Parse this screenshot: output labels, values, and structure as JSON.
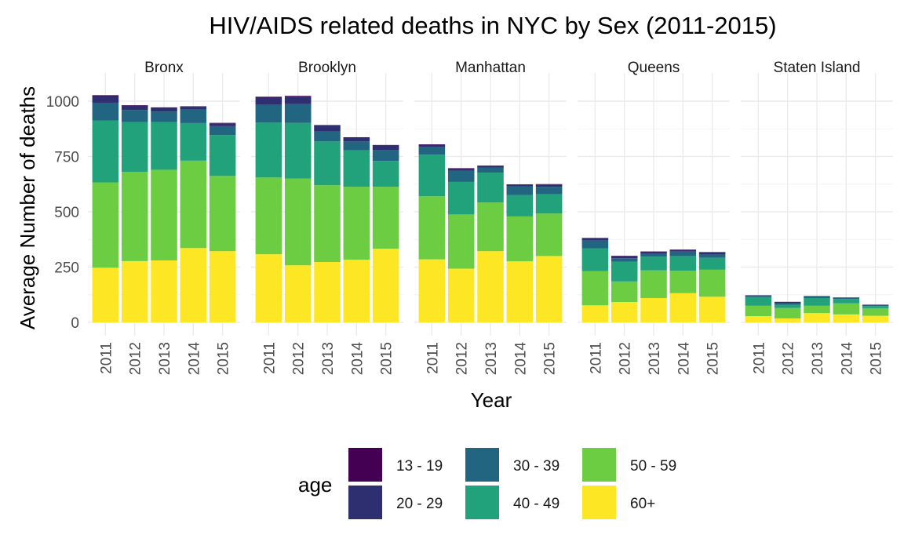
{
  "chart_data": {
    "type": "bar",
    "stacked": true,
    "title": "HIV/AIDS related deaths in NYC by Sex (2011-2015)",
    "xlabel": "Year",
    "ylabel": "Average Number of deaths",
    "ylim": [
      0,
      1080
    ],
    "yticks": [
      0,
      250,
      500,
      750,
      1000
    ],
    "categories": [
      "2011",
      "2012",
      "2013",
      "2014",
      "2015"
    ],
    "grid": true,
    "legend": {
      "title": "age",
      "placement": "bottom",
      "entries": [
        "13 - 19",
        "20 - 29",
        "30 - 39",
        "40 - 49",
        "50 - 59",
        "60+"
      ]
    },
    "colors": {
      "13 - 19": "#440154",
      "20 - 29": "#2e2f71",
      "30 - 39": "#226581",
      "40 - 49": "#22a27a",
      "50 - 59": "#6ccc42",
      "60+": "#fde725"
    },
    "stack_order": [
      "60+",
      "50 - 59",
      "40 - 49",
      "30 - 39",
      "20 - 29",
      "13 - 19"
    ],
    "panels": [
      {
        "name": "Bronx",
        "series": [
          {
            "name": "60+",
            "values": [
              247,
              277,
              280,
              336,
              322
            ]
          },
          {
            "name": "50 - 59",
            "values": [
              386,
              403,
              410,
              395,
              340
            ]
          },
          {
            "name": "40 - 49",
            "values": [
              280,
              225,
              215,
              170,
              185
            ]
          },
          {
            "name": "30 - 39",
            "values": [
              80,
              55,
              48,
              62,
              40
            ]
          },
          {
            "name": "20 - 29",
            "values": [
              30,
              20,
              17,
              12,
              13
            ]
          },
          {
            "name": "13 - 19",
            "values": [
              4,
              2,
              2,
              2,
              2
            ]
          }
        ]
      },
      {
        "name": "Brooklyn",
        "series": [
          {
            "name": "60+",
            "values": [
              308,
              258,
              273,
              283,
              333
            ]
          },
          {
            "name": "50 - 59",
            "values": [
              347,
              392,
              347,
              330,
              280
            ]
          },
          {
            "name": "40 - 49",
            "values": [
              248,
              252,
              198,
              165,
              117
            ]
          },
          {
            "name": "30 - 39",
            "values": [
              80,
              85,
              45,
              40,
              50
            ]
          },
          {
            "name": "20 - 29",
            "values": [
              33,
              33,
              27,
              17,
              20
            ]
          },
          {
            "name": "13 - 19",
            "values": [
              4,
              4,
              2,
              2,
              2
            ]
          }
        ]
      },
      {
        "name": "Manhattan",
        "series": [
          {
            "name": "60+",
            "values": [
              285,
              243,
              322,
              276,
              300
            ]
          },
          {
            "name": "50 - 59",
            "values": [
              285,
              245,
              220,
              203,
              192
            ]
          },
          {
            "name": "40 - 49",
            "values": [
              188,
              147,
              135,
              97,
              88
            ]
          },
          {
            "name": "30 - 39",
            "values": [
              35,
              50,
              22,
              38,
              33
            ]
          },
          {
            "name": "20 - 29",
            "values": [
              10,
              10,
              8,
              8,
              10
            ]
          },
          {
            "name": "13 - 19",
            "values": [
              2,
              2,
              2,
              2,
              2
            ]
          }
        ]
      },
      {
        "name": "Queens",
        "series": [
          {
            "name": "60+",
            "values": [
              77,
              92,
              110,
              132,
              116
            ]
          },
          {
            "name": "50 - 59",
            "values": [
              155,
              93,
              125,
              102,
              122
            ]
          },
          {
            "name": "40 - 49",
            "values": [
              103,
              90,
              62,
              66,
              54
            ]
          },
          {
            "name": "30 - 39",
            "values": [
              35,
              15,
              15,
              20,
              15
            ]
          },
          {
            "name": "20 - 29",
            "values": [
              10,
              10,
              8,
              8,
              10
            ]
          },
          {
            "name": "13 - 19",
            "values": [
              2,
              1,
              1,
              1,
              1
            ]
          }
        ]
      },
      {
        "name": "Staten Island",
        "series": [
          {
            "name": "60+",
            "values": [
              28,
              18,
              42,
              36,
              30
            ]
          },
          {
            "name": "50 - 59",
            "values": [
              47,
              47,
              33,
              50,
              34
            ]
          },
          {
            "name": "40 - 49",
            "values": [
              40,
              15,
              35,
              20,
              10
            ]
          },
          {
            "name": "30 - 39",
            "values": [
              6,
              7,
              7,
              5,
              4
            ]
          },
          {
            "name": "20 - 29",
            "values": [
              2,
              6,
              2,
              2,
              2
            ]
          },
          {
            "name": "13 - 19",
            "values": [
              0,
              0,
              0,
              0,
              0
            ]
          }
        ]
      }
    ]
  }
}
